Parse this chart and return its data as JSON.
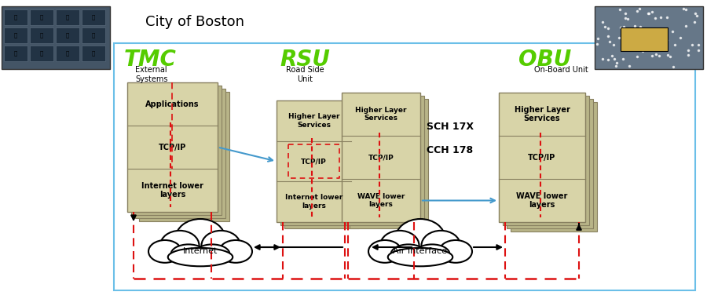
{
  "title": "City of Boston",
  "bg_color": "#ffffff",
  "border_color": "#6bbfe8",
  "stack_bg": "#d8d4a8",
  "stack_border": "#888060",
  "shadow_color": "#b8b488",
  "label_color": "#55cc00",
  "tmc_label": "TMC",
  "rsu_label": "RSU",
  "obu_label": "OBU",
  "tmc_sub": "External\nSystems",
  "rsu_sub": "Road Side\nUnit",
  "obu_sub": "On-Board Unit",
  "tmc_layers": [
    "Applications",
    "TCP/IP",
    "Internet lower\nlayers"
  ],
  "rsu_left_layers": [
    "Higher Layer\nServices",
    "TCP/IP",
    "Internet lower\nlayers"
  ],
  "rsu_right_layers": [
    "Higher Layer\nServices",
    "TCP/IP",
    "WAVE lower\nlayers"
  ],
  "obu_layers": [
    "Higher Layer\nServices",
    "TCP/IP",
    "WAVE lower\nlayers"
  ],
  "sch_label": "SCH 17X",
  "cch_label": "CCH 178",
  "internet_label": "Internet",
  "air_label": "Air Interface",
  "arrow_blue": "#4499cc",
  "dashed_red": "#dd1111",
  "black": "#000000",
  "photo_left_color": "#445566",
  "photo_right_color": "#667788"
}
